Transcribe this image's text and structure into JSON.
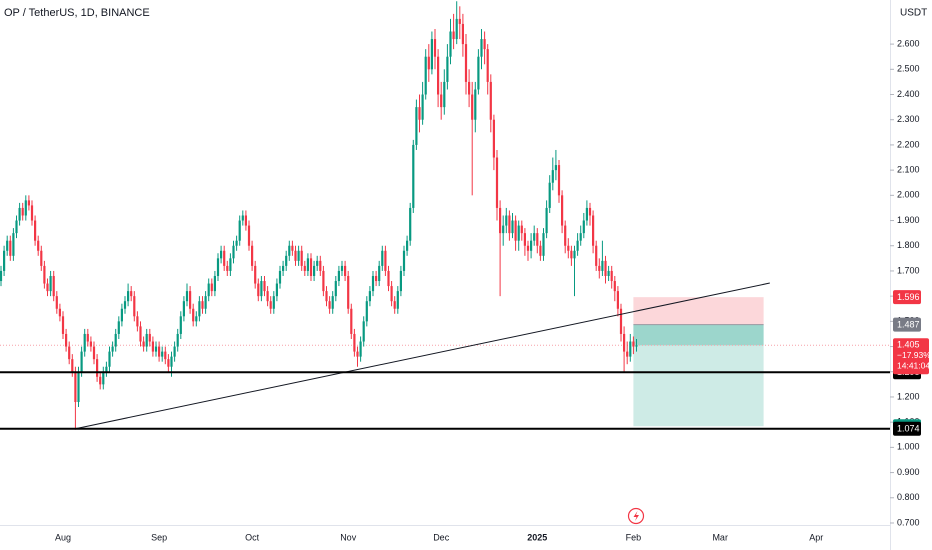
{
  "chart_data": {
    "type": "candlestick",
    "title": "OP / TetherUS, 1D, BINANCE",
    "currency": "USDT",
    "up_color": "#089981",
    "down_color": "#f23645",
    "ylim": [
      0.692,
      2.775
    ],
    "yticks": [
      {
        "value": 0.7,
        "label": "0.700"
      },
      {
        "value": 0.8,
        "label": "0.800"
      },
      {
        "value": 0.9,
        "label": "0.900"
      },
      {
        "value": 1.0,
        "label": "1.000"
      },
      {
        "value": 1.1,
        "label": "1.100"
      },
      {
        "value": 1.2,
        "label": "1.200"
      },
      {
        "value": 1.3,
        "label": "1.300"
      },
      {
        "value": 1.4,
        "label": "1.400"
      },
      {
        "value": 1.5,
        "label": "1.500"
      },
      {
        "value": 1.6,
        "label": "1.600"
      },
      {
        "value": 1.7,
        "label": "1.700"
      },
      {
        "value": 1.8,
        "label": "1.800"
      },
      {
        "value": 1.9,
        "label": "1.900"
      },
      {
        "value": 2.0,
        "label": "2.000"
      },
      {
        "value": 2.1,
        "label": "2.100"
      },
      {
        "value": 2.2,
        "label": "2.200"
      },
      {
        "value": 2.3,
        "label": "2.300"
      },
      {
        "value": 2.4,
        "label": "2.400"
      },
      {
        "value": 2.5,
        "label": "2.500"
      },
      {
        "value": 2.6,
        "label": "2.600"
      }
    ],
    "grid": false,
    "categories": [
      null,
      null,
      null,
      null,
      null,
      null,
      null,
      null,
      null,
      null,
      null,
      null,
      null,
      null,
      null,
      null,
      null,
      null,
      null,
      null,
      "Aug",
      null,
      null,
      null,
      null,
      null,
      null,
      null,
      null,
      null,
      null,
      null,
      null,
      null,
      null,
      null,
      null,
      null,
      null,
      null,
      null,
      null,
      null,
      null,
      null,
      null,
      null,
      null,
      null,
      null,
      null,
      "Sep",
      null,
      null,
      null,
      null,
      null,
      null,
      null,
      null,
      null,
      null,
      null,
      null,
      null,
      null,
      null,
      null,
      null,
      null,
      null,
      null,
      null,
      null,
      null,
      null,
      null,
      null,
      null,
      null,
      null,
      "Oct",
      null,
      null,
      null,
      null,
      null,
      null,
      null,
      null,
      null,
      null,
      null,
      null,
      null,
      null,
      null,
      null,
      null,
      null,
      null,
      null,
      null,
      null,
      null,
      null,
      null,
      null,
      null,
      null,
      null,
      null,
      "Nov",
      null,
      null,
      null,
      null,
      null,
      null,
      null,
      null,
      null,
      null,
      null,
      null,
      null,
      null,
      null,
      null,
      null,
      null,
      null,
      null,
      null,
      null,
      null,
      null,
      null,
      null,
      null,
      null,
      null,
      "Dec",
      null,
      null,
      null,
      null,
      null,
      null,
      null,
      null,
      null,
      null,
      null,
      null,
      null,
      null,
      null,
      null,
      null,
      null,
      null,
      null,
      null,
      null,
      null,
      null,
      null,
      null,
      null,
      null,
      null,
      null,
      "2025",
      null,
      null,
      null,
      null,
      null,
      null,
      null,
      null,
      null,
      null,
      null,
      null,
      null,
      null,
      null,
      null,
      null,
      null,
      null,
      null,
      null,
      null,
      null,
      null,
      null,
      null,
      null,
      null,
      null,
      null,
      "Feb",
      null,
      null,
      null,
      null,
      null,
      null,
      null,
      null,
      null,
      null,
      null,
      null,
      null,
      null,
      null,
      null,
      null,
      null,
      null,
      null,
      null,
      null,
      null,
      null,
      null,
      null,
      null,
      "Mar",
      null,
      null,
      null,
      null,
      null,
      null,
      null,
      null,
      null,
      null,
      null,
      null,
      null,
      null,
      null,
      null,
      null,
      null,
      null,
      null,
      null,
      null,
      null,
      null,
      null,
      null,
      null,
      null,
      null,
      null,
      "Apr"
    ],
    "open": [
      1.66,
      1.7,
      1.78,
      1.82,
      1.76,
      1.85,
      1.9,
      1.95,
      1.92,
      1.98,
      1.96,
      1.9,
      1.82,
      1.78,
      1.72,
      1.65,
      1.62,
      1.68,
      1.6,
      1.55,
      1.52,
      1.45,
      1.4,
      1.35,
      1.3,
      1.18,
      1.3,
      1.38,
      1.45,
      1.42,
      1.4,
      1.35,
      1.28,
      1.25,
      1.3,
      1.32,
      1.38,
      1.4,
      1.45,
      1.5,
      1.55,
      1.58,
      1.62,
      1.6,
      1.52,
      1.48,
      1.42,
      1.4,
      1.45,
      1.42,
      1.38,
      1.4,
      1.36,
      1.38,
      1.35,
      1.32,
      1.36,
      1.4,
      1.45,
      1.52,
      1.58,
      1.62,
      1.55,
      1.5,
      1.52,
      1.58,
      1.55,
      1.6,
      1.65,
      1.62,
      1.68,
      1.75,
      1.78,
      1.72,
      1.7,
      1.75,
      1.8,
      1.82,
      1.9,
      1.92,
      1.88,
      1.8,
      1.72,
      1.65,
      1.6,
      1.66,
      1.62,
      1.58,
      1.55,
      1.6,
      1.65,
      1.7,
      1.72,
      1.76,
      1.8,
      1.78,
      1.74,
      1.78,
      1.72,
      1.7,
      1.75,
      1.68,
      1.72,
      1.74,
      1.7,
      1.62,
      1.58,
      1.55,
      1.6,
      1.66,
      1.7,
      1.72,
      1.68,
      1.55,
      1.45,
      1.38,
      1.36,
      1.42,
      1.5,
      1.58,
      1.62,
      1.68,
      1.66,
      1.72,
      1.78,
      1.7,
      1.64,
      1.58,
      1.55,
      1.62,
      1.7,
      1.78,
      1.82,
      1.95,
      2.2,
      2.35,
      2.3,
      2.4,
      2.55,
      2.5,
      2.62,
      2.55,
      2.4,
      2.35,
      2.45,
      2.55,
      2.65,
      2.62,
      2.7,
      2.68,
      2.6,
      2.45,
      2.4,
      2.3,
      2.42,
      2.55,
      2.62,
      2.58,
      2.45,
      2.3,
      2.15,
      1.95,
      1.85,
      1.88,
      1.92,
      1.85,
      1.9,
      1.82,
      1.88,
      1.85,
      1.8,
      1.78,
      1.82,
      1.85,
      1.8,
      1.76,
      1.85,
      1.95,
      2.05,
      2.1,
      2.12,
      2.0,
      1.88,
      1.8,
      1.78,
      1.75,
      1.78,
      1.82,
      1.85,
      1.9,
      1.95,
      1.92,
      1.8,
      1.72,
      1.7,
      1.74,
      1.68,
      1.7,
      1.66,
      1.62,
      1.55,
      1.45,
      1.38,
      1.36,
      1.42,
      1.4,
      null,
      null,
      null,
      null,
      null,
      null,
      null,
      null,
      null,
      null,
      null,
      null,
      null,
      null,
      null,
      null,
      null,
      null,
      null,
      null,
      null,
      null,
      null,
      null,
      null,
      null,
      null,
      null,
      null,
      null,
      null,
      null,
      null,
      null,
      null,
      null,
      null,
      null,
      null,
      null,
      null,
      null,
      null,
      null,
      null,
      null,
      null,
      null,
      null,
      null,
      null,
      null,
      null,
      null,
      null,
      null,
      null,
      null
    ],
    "high": [
      1.72,
      1.8,
      1.84,
      1.84,
      1.87,
      1.92,
      1.97,
      1.97,
      2.0,
      2.0,
      1.98,
      1.92,
      1.84,
      1.8,
      1.74,
      1.67,
      1.7,
      1.7,
      1.62,
      1.57,
      1.54,
      1.47,
      1.42,
      1.37,
      1.32,
      1.32,
      1.4,
      1.47,
      1.47,
      1.44,
      1.42,
      1.37,
      1.3,
      1.32,
      1.34,
      1.4,
      1.42,
      1.47,
      1.52,
      1.57,
      1.6,
      1.65,
      1.64,
      1.62,
      1.54,
      1.5,
      1.44,
      1.47,
      1.47,
      1.44,
      1.42,
      1.42,
      1.4,
      1.4,
      1.37,
      1.38,
      1.42,
      1.47,
      1.54,
      1.6,
      1.65,
      1.64,
      1.57,
      1.54,
      1.6,
      1.6,
      1.62,
      1.67,
      1.67,
      1.7,
      1.77,
      1.8,
      1.8,
      1.74,
      1.77,
      1.82,
      1.84,
      1.92,
      1.94,
      1.94,
      1.9,
      1.82,
      1.74,
      1.67,
      1.68,
      1.68,
      1.64,
      1.6,
      1.62,
      1.67,
      1.72,
      1.74,
      1.78,
      1.82,
      1.82,
      1.8,
      1.8,
      1.8,
      1.74,
      1.77,
      1.77,
      1.74,
      1.76,
      1.76,
      1.72,
      1.64,
      1.6,
      1.62,
      1.68,
      1.72,
      1.74,
      1.74,
      1.7,
      1.57,
      1.47,
      1.4,
      1.44,
      1.52,
      1.6,
      1.64,
      1.7,
      1.7,
      1.74,
      1.8,
      1.8,
      1.72,
      1.66,
      1.6,
      1.64,
      1.72,
      1.8,
      1.84,
      1.97,
      2.22,
      2.38,
      2.4,
      2.45,
      2.58,
      2.6,
      2.65,
      2.66,
      2.58,
      2.45,
      2.5,
      2.6,
      2.7,
      2.72,
      2.77,
      2.75,
      2.72,
      2.64,
      2.5,
      2.45,
      2.45,
      2.58,
      2.66,
      2.65,
      2.6,
      2.48,
      2.32,
      2.18,
      1.98,
      1.92,
      1.95,
      1.94,
      1.93,
      1.92,
      1.9,
      1.9,
      1.87,
      1.82,
      1.85,
      1.88,
      1.87,
      1.82,
      1.87,
      1.98,
      2.08,
      2.15,
      2.18,
      2.14,
      2.02,
      1.9,
      1.83,
      1.8,
      1.8,
      1.85,
      1.88,
      1.93,
      1.98,
      1.97,
      1.94,
      1.82,
      1.75,
      1.82,
      1.76,
      1.72,
      1.72,
      1.68,
      1.64,
      1.57,
      1.48,
      1.42,
      1.45,
      1.44,
      1.43,
      null,
      null,
      null,
      null,
      null,
      null,
      null,
      null,
      null,
      null,
      null,
      null,
      null,
      null,
      null,
      null,
      null,
      null,
      null,
      null,
      null,
      null,
      null,
      null,
      null,
      null,
      null,
      null,
      null,
      null,
      null,
      null,
      null,
      null,
      null,
      null,
      null,
      null,
      null,
      null,
      null,
      null,
      null,
      null,
      null,
      null,
      null,
      null,
      null,
      null,
      null,
      null,
      null,
      null,
      null,
      null,
      null,
      null
    ],
    "low": [
      1.64,
      1.68,
      1.76,
      1.74,
      1.74,
      1.83,
      1.88,
      1.9,
      1.9,
      1.94,
      1.88,
      1.8,
      1.76,
      1.7,
      1.63,
      1.6,
      1.6,
      1.58,
      1.53,
      1.5,
      1.43,
      1.38,
      1.33,
      1.28,
      1.07,
      1.16,
      1.28,
      1.36,
      1.4,
      1.38,
      1.33,
      1.26,
      1.23,
      1.23,
      1.28,
      1.3,
      1.36,
      1.38,
      1.43,
      1.48,
      1.53,
      1.56,
      1.58,
      1.5,
      1.46,
      1.4,
      1.38,
      1.38,
      1.4,
      1.36,
      1.36,
      1.34,
      1.34,
      1.33,
      1.3,
      1.28,
      1.34,
      1.38,
      1.43,
      1.5,
      1.56,
      1.53,
      1.48,
      1.48,
      1.5,
      1.53,
      1.53,
      1.58,
      1.6,
      1.6,
      1.66,
      1.73,
      1.7,
      1.68,
      1.68,
      1.73,
      1.78,
      1.8,
      1.88,
      1.86,
      1.78,
      1.7,
      1.63,
      1.58,
      1.58,
      1.6,
      1.56,
      1.53,
      1.53,
      1.58,
      1.63,
      1.68,
      1.7,
      1.74,
      1.76,
      1.72,
      1.72,
      1.7,
      1.68,
      1.68,
      1.66,
      1.66,
      1.7,
      1.68,
      1.6,
      1.56,
      1.53,
      1.53,
      1.58,
      1.64,
      1.68,
      1.66,
      1.53,
      1.43,
      1.36,
      1.32,
      1.34,
      1.4,
      1.48,
      1.56,
      1.6,
      1.64,
      1.64,
      1.7,
      1.68,
      1.62,
      1.56,
      1.53,
      1.53,
      1.6,
      1.68,
      1.76,
      1.8,
      1.93,
      2.18,
      2.25,
      2.28,
      2.38,
      2.45,
      2.48,
      2.5,
      2.35,
      2.3,
      2.32,
      2.42,
      2.52,
      2.58,
      2.6,
      2.62,
      2.55,
      2.4,
      2.35,
      2.0,
      2.25,
      2.4,
      2.5,
      2.52,
      2.4,
      2.25,
      2.1,
      1.9,
      1.6,
      1.8,
      1.85,
      1.82,
      1.83,
      1.78,
      1.78,
      1.82,
      1.76,
      1.74,
      1.75,
      1.8,
      1.77,
      1.74,
      1.74,
      1.83,
      1.93,
      2.02,
      2.06,
      1.97,
      1.85,
      1.77,
      1.75,
      1.72,
      1.6,
      1.76,
      1.8,
      1.83,
      1.88,
      1.88,
      1.77,
      1.7,
      1.67,
      1.68,
      1.65,
      1.66,
      1.63,
      1.58,
      1.52,
      1.42,
      1.3,
      1.33,
      1.34,
      1.37,
      1.38,
      null,
      null,
      null,
      null,
      null,
      null,
      null,
      null,
      null,
      null,
      null,
      null,
      null,
      null,
      null,
      null,
      null,
      null,
      null,
      null,
      null,
      null,
      null,
      null,
      null,
      null,
      null,
      null,
      null,
      null,
      null,
      null,
      null,
      null,
      null,
      null,
      null,
      null,
      null,
      null,
      null,
      null,
      null,
      null,
      null,
      null,
      null,
      null,
      null,
      null,
      null,
      null,
      null,
      null,
      null,
      null,
      null,
      null
    ],
    "close": [
      1.7,
      1.78,
      1.82,
      1.76,
      1.85,
      1.9,
      1.95,
      1.92,
      1.98,
      1.96,
      1.9,
      1.82,
      1.78,
      1.72,
      1.65,
      1.62,
      1.68,
      1.6,
      1.55,
      1.52,
      1.45,
      1.4,
      1.35,
      1.3,
      1.18,
      1.3,
      1.38,
      1.45,
      1.42,
      1.4,
      1.35,
      1.28,
      1.25,
      1.3,
      1.32,
      1.38,
      1.4,
      1.45,
      1.5,
      1.55,
      1.58,
      1.62,
      1.6,
      1.52,
      1.48,
      1.42,
      1.4,
      1.45,
      1.42,
      1.38,
      1.4,
      1.36,
      1.38,
      1.35,
      1.32,
      1.36,
      1.4,
      1.45,
      1.52,
      1.58,
      1.62,
      1.55,
      1.5,
      1.52,
      1.58,
      1.55,
      1.6,
      1.65,
      1.62,
      1.68,
      1.75,
      1.78,
      1.72,
      1.7,
      1.75,
      1.8,
      1.82,
      1.9,
      1.92,
      1.88,
      1.8,
      1.72,
      1.65,
      1.6,
      1.66,
      1.62,
      1.58,
      1.55,
      1.6,
      1.65,
      1.7,
      1.72,
      1.76,
      1.8,
      1.78,
      1.74,
      1.78,
      1.72,
      1.7,
      1.75,
      1.68,
      1.72,
      1.74,
      1.7,
      1.62,
      1.58,
      1.55,
      1.6,
      1.66,
      1.7,
      1.72,
      1.68,
      1.55,
      1.45,
      1.38,
      1.36,
      1.42,
      1.5,
      1.58,
      1.62,
      1.68,
      1.66,
      1.72,
      1.78,
      1.7,
      1.64,
      1.58,
      1.55,
      1.62,
      1.7,
      1.78,
      1.82,
      1.95,
      2.2,
      2.35,
      2.3,
      2.4,
      2.55,
      2.5,
      2.62,
      2.55,
      2.4,
      2.35,
      2.45,
      2.55,
      2.65,
      2.62,
      2.7,
      2.68,
      2.6,
      2.45,
      2.4,
      2.3,
      2.42,
      2.55,
      2.62,
      2.58,
      2.45,
      2.3,
      2.15,
      1.95,
      1.85,
      1.88,
      1.92,
      1.85,
      1.9,
      1.82,
      1.88,
      1.85,
      1.8,
      1.78,
      1.82,
      1.85,
      1.8,
      1.76,
      1.85,
      1.95,
      2.05,
      2.1,
      2.12,
      2.0,
      1.88,
      1.8,
      1.78,
      1.75,
      1.78,
      1.82,
      1.85,
      1.9,
      1.95,
      1.92,
      1.8,
      1.72,
      1.7,
      1.74,
      1.68,
      1.7,
      1.66,
      1.62,
      1.55,
      1.45,
      1.38,
      1.36,
      1.42,
      1.4,
      1.405,
      null,
      null,
      null,
      null,
      null,
      null,
      null,
      null,
      null,
      null,
      null,
      null,
      null,
      null,
      null,
      null,
      null,
      null,
      null,
      null,
      null,
      null,
      null,
      null,
      null,
      null,
      null,
      null,
      null,
      null,
      null,
      null,
      null,
      null,
      null,
      null,
      null,
      null,
      null,
      null,
      null,
      null,
      null,
      null,
      null,
      null,
      null,
      null,
      null,
      null,
      null,
      null,
      null,
      null,
      null,
      null,
      null,
      null
    ],
    "levels": [
      1.298,
      1.074
    ],
    "trendline": {
      "start": [
        24,
        1.074
      ],
      "end": [
        248,
        1.652
      ]
    },
    "position": {
      "start": 204,
      "end": 246,
      "stop": 1.596,
      "entry": 1.487,
      "target": 1.084
    },
    "last_price": {
      "value": 1.405,
      "change": "−17.93%",
      "countdown": "14:41:04"
    }
  }
}
